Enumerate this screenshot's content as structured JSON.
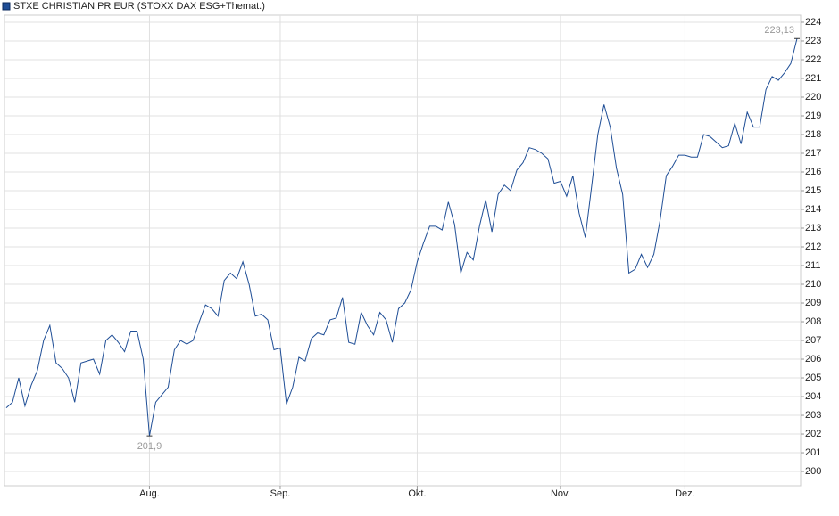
{
  "chart_data": {
    "type": "line",
    "legend": "STXE CHRISTIAN PR EUR (STOXX DAX ESG+Themat.)",
    "series": [
      {
        "name": "STXE CHRISTIAN PR EUR (STOXX DAX ESG+Themat.)",
        "color": "#1f4e96",
        "values": [
          203.4,
          203.7,
          205.0,
          203.5,
          204.6,
          205.4,
          207.0,
          207.8,
          205.8,
          205.5,
          205.0,
          203.7,
          205.8,
          205.9,
          206.0,
          205.2,
          207.0,
          207.3,
          206.9,
          206.4,
          207.5,
          207.5,
          206.0,
          201.9,
          203.7,
          204.1,
          204.5,
          206.5,
          207.0,
          206.8,
          207.0,
          208.0,
          208.9,
          208.7,
          208.3,
          210.2,
          210.6,
          210.3,
          211.2,
          210.0,
          208.3,
          208.4,
          208.1,
          206.5,
          206.6,
          203.6,
          204.5,
          206.1,
          205.9,
          207.1,
          207.4,
          207.3,
          208.1,
          208.2,
          209.3,
          206.9,
          206.8,
          208.5,
          207.8,
          207.3,
          208.5,
          208.1,
          206.9,
          208.7,
          209.0,
          209.7,
          211.2,
          212.2,
          213.1,
          213.1,
          212.9,
          214.4,
          213.2,
          210.6,
          211.7,
          211.3,
          213.1,
          214.5,
          212.8,
          214.8,
          215.3,
          215.0,
          216.1,
          216.5,
          217.3,
          217.2,
          217.0,
          216.7,
          215.4,
          215.5,
          214.7,
          215.8,
          213.8,
          212.5,
          215.2,
          218.0,
          219.6,
          218.4,
          216.2,
          214.8,
          210.6,
          210.8,
          211.6,
          210.9,
          211.6,
          213.4,
          215.8,
          216.3,
          216.9,
          216.9,
          216.8,
          216.8,
          218.0,
          217.9,
          217.6,
          217.3,
          217.4,
          218.6,
          217.5,
          219.2,
          218.4,
          218.4,
          220.4,
          221.1,
          220.9,
          221.3,
          221.8,
          223.13
        ]
      }
    ],
    "xlim": [
      0,
      127
    ],
    "xticks": [
      {
        "value": 23,
        "label": "Aug."
      },
      {
        "value": 44,
        "label": "Sep."
      },
      {
        "value": 66,
        "label": "Okt."
      },
      {
        "value": 89,
        "label": "Nov."
      },
      {
        "value": 109,
        "label": "Dez."
      }
    ],
    "ylim": [
      199.24,
      224.38
    ],
    "yticks": [
      200,
      201,
      202,
      203,
      204,
      205,
      206,
      207,
      208,
      209,
      210,
      211,
      212,
      213,
      214,
      215,
      216,
      217,
      218,
      219,
      220,
      221,
      222,
      223,
      224
    ],
    "grid": true,
    "high": {
      "value": 223.13,
      "label": "223,13"
    },
    "low": {
      "value": 201.9,
      "label": "201,9"
    }
  }
}
